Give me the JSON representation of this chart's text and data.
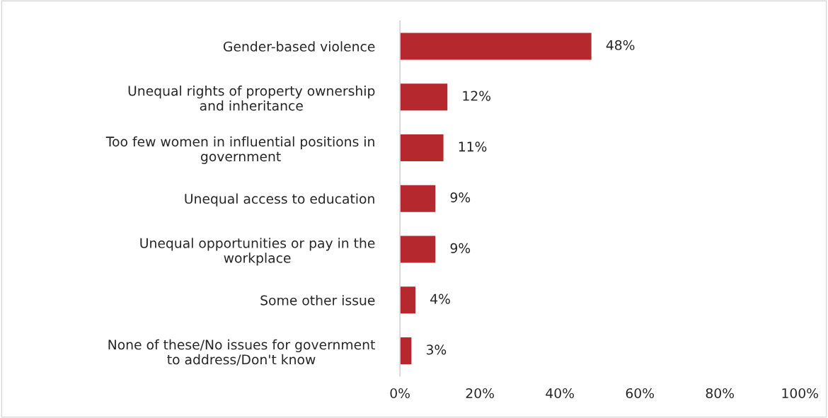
{
  "chart_data": {
    "type": "bar",
    "orientation": "horizontal",
    "categories": [
      "Gender-based violence",
      "Unequal rights of property ownership\nand inheritance",
      "Too few women in influential positions in\ngovernment",
      "Unequal access to education",
      "Unequal opportunities or pay in the\nworkplace",
      "Some other issue",
      "None of these/No issues for government\nto address/Don't know"
    ],
    "values": [
      48,
      12,
      11,
      9,
      9,
      4,
      3
    ],
    "value_labels": [
      "48%",
      "12%",
      "11%",
      "9%",
      "9%",
      "4%",
      "3%"
    ],
    "color": "#b5282e",
    "xlim": [
      0,
      100
    ],
    "xticks": [
      {
        "value": 0,
        "label": "0%"
      },
      {
        "value": 20,
        "label": "20%"
      },
      {
        "value": 40,
        "label": "40%"
      },
      {
        "value": 60,
        "label": "60%"
      },
      {
        "value": 80,
        "label": "80%"
      },
      {
        "value": 100,
        "label": "100%"
      }
    ],
    "grid": false,
    "legend": false
  }
}
